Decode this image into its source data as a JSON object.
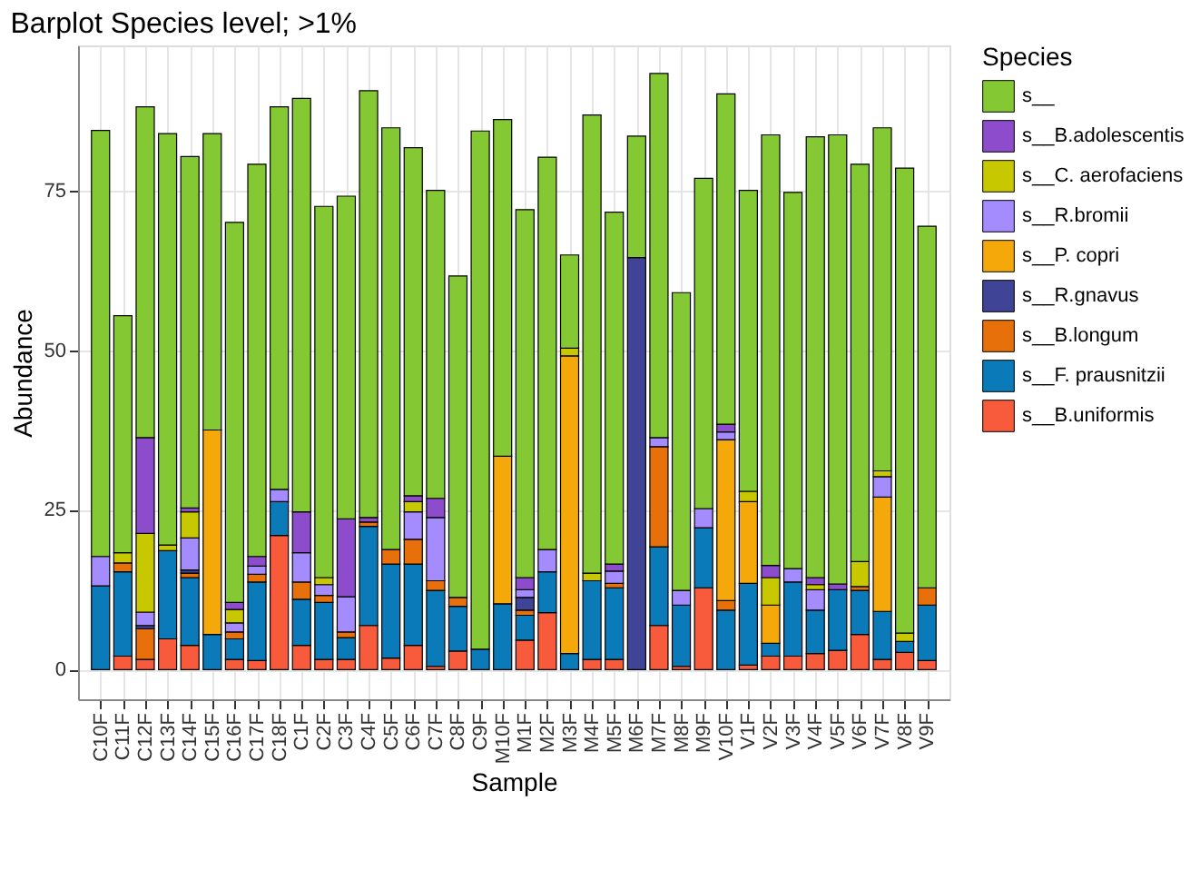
{
  "chart_data": {
    "type": "bar",
    "stacked": true,
    "title": "Barplot Species level; >1%",
    "xlabel": "Sample",
    "ylabel": "Abundance",
    "legend_title": "Species",
    "legend": "right",
    "grid": true,
    "categories": [
      "C10F",
      "C11F",
      "C12F",
      "C13F",
      "C14F",
      "C15F",
      "C16F",
      "C17F",
      "C18F",
      "C1F",
      "C2F",
      "C3F",
      "C4F",
      "C5F",
      "C6F",
      "C7F",
      "C8F",
      "C9F",
      "M10F",
      "M1F",
      "M2F",
      "M3F",
      "M4F",
      "M5F",
      "M6F",
      "M7F",
      "M8F",
      "M9F",
      "V10F",
      "V1F",
      "V2F",
      "V3F",
      "V4F",
      "V5F",
      "V6F",
      "V7F",
      "V8F",
      "V9F"
    ],
    "ylim": [
      -4.65,
      97.7
    ],
    "yticks": [
      0,
      25,
      50,
      75
    ],
    "series": [
      {
        "name": "s__B.uniformis",
        "color": "#f85a3c",
        "values": [
          0,
          2.1,
          1.6,
          4.8,
          3.8,
          0,
          1.6,
          1.4,
          21.0,
          3.8,
          1.6,
          1.6,
          6.9,
          1.8,
          3.8,
          0.5,
          2.9,
          0,
          0,
          4.6,
          8.9,
          0,
          1.6,
          1.6,
          0,
          6.9,
          0.5,
          12.8,
          0,
          0.7,
          2.1,
          2.1,
          2.5,
          3.0,
          5.5,
          1.6,
          2.7,
          1.4
        ]
      },
      {
        "name": "s__F. prausnitzii",
        "color": "#0a7ab8",
        "values": [
          13.1,
          13.2,
          0,
          13.8,
          10.6,
          5.5,
          3.2,
          12.3,
          5.3,
          7.2,
          8.9,
          3.4,
          15.5,
          14.7,
          12.7,
          11.9,
          7.0,
          3.2,
          10.3,
          3.9,
          6.4,
          2.5,
          12.3,
          11.2,
          0,
          12.3,
          9.6,
          9.4,
          9.3,
          12.8,
          2.0,
          11.6,
          6.8,
          9.5,
          6.9,
          7.5,
          1.7,
          8.7
        ]
      },
      {
        "name": "s__B.longum",
        "color": "#e8700a",
        "values": [
          0,
          1.4,
          4.8,
          0,
          0.7,
          0,
          1.1,
          1.2,
          0,
          2.7,
          1.1,
          0.9,
          0.7,
          2.3,
          3.9,
          1.5,
          1.4,
          0,
          0,
          0.8,
          0,
          0,
          0,
          0.7,
          0,
          15.7,
          0,
          0,
          1.5,
          0,
          0,
          0,
          0,
          0,
          0.6,
          0,
          0,
          2.7
        ]
      },
      {
        "name": "s__R.gnavus",
        "color": "#3f4496",
        "values": [
          0,
          0,
          0.5,
          0,
          0.5,
          0,
          0,
          0,
          0,
          0,
          0,
          0,
          0,
          0,
          0,
          0,
          0,
          0,
          0,
          2.0,
          0,
          0,
          0,
          0,
          64.5,
          0,
          0,
          0,
          0,
          0,
          0,
          0,
          0,
          0,
          0,
          0,
          0,
          0
        ]
      },
      {
        "name": "s__P. copri",
        "color": "#f5a80a",
        "values": [
          0,
          0,
          0,
          0,
          0,
          32.0,
          0,
          0,
          0,
          0,
          0,
          0,
          0,
          0,
          0,
          0,
          0,
          0,
          23.1,
          0,
          0,
          46.6,
          0,
          0,
          0,
          0,
          0,
          0,
          25.2,
          12.8,
          6.0,
          0,
          0,
          0,
          0,
          17.9,
          0,
          0
        ]
      },
      {
        "name": "s__R.bromii",
        "color": "#a48cff",
        "values": [
          4.6,
          0,
          2.1,
          0,
          5.0,
          0,
          1.4,
          1.3,
          1.9,
          4.6,
          1.7,
          5.5,
          0,
          0,
          4.3,
          9.9,
          0,
          0,
          0,
          1.2,
          3.5,
          0,
          0,
          1.9,
          0,
          1.4,
          2.3,
          3.0,
          1.2,
          0,
          0,
          2.1,
          3.2,
          0,
          0,
          3.2,
          0,
          0
        ]
      },
      {
        "name": "s__C. aerofaciens",
        "color": "#c8c800",
        "values": [
          0,
          1.6,
          12.3,
          0.9,
          4.1,
          0,
          2.1,
          0,
          0,
          0,
          1.1,
          0,
          0,
          0,
          1.6,
          0,
          0,
          0,
          0,
          0,
          0,
          1.2,
          1.2,
          0,
          0,
          0,
          0,
          0,
          0,
          1.6,
          4.3,
          0,
          0.8,
          0,
          3.9,
          0.9,
          1.3,
          0
        ]
      },
      {
        "name": "s__B.adolescentis",
        "color": "#8c4ccc",
        "values": [
          0,
          0,
          15.0,
          0,
          0.6,
          0,
          1.1,
          1.5,
          0,
          6.4,
          0,
          12.2,
          0.7,
          0,
          0.9,
          3.0,
          0,
          0,
          0,
          1.9,
          0,
          0,
          0,
          1.1,
          0,
          0,
          0,
          0,
          1.2,
          0,
          1.9,
          0,
          1.1,
          0.9,
          0,
          0,
          0,
          0
        ]
      },
      {
        "name": "s__",
        "color": "#84c834",
        "values": [
          66.7,
          37.1,
          51.8,
          64.4,
          55.0,
          46.4,
          59.5,
          61.4,
          59.9,
          64.7,
          58.1,
          50.5,
          66.8,
          66.0,
          54.5,
          48.2,
          50.3,
          81.1,
          52.7,
          57.6,
          61.4,
          14.6,
          71.7,
          55.1,
          19.0,
          57.0,
          46.6,
          51.7,
          51.7,
          47.1,
          67.4,
          58.9,
          69.0,
          70.3,
          62.2,
          53.7,
          72.8,
          56.6
        ]
      }
    ]
  }
}
